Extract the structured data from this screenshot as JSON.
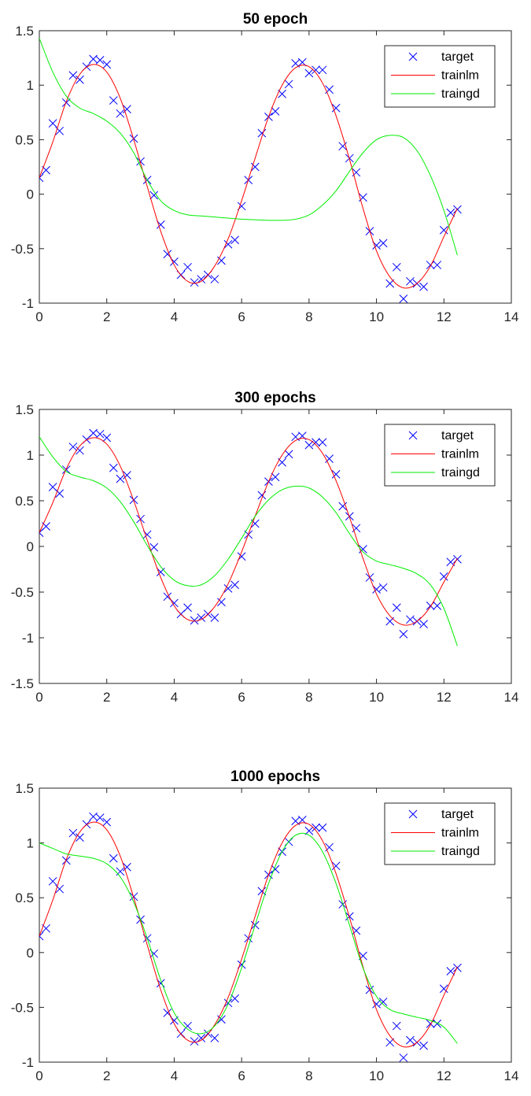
{
  "chart_data": [
    {
      "type": "line",
      "title": "50 epoch",
      "xlabel": "",
      "ylabel": "",
      "xlim": [
        0,
        14
      ],
      "ylim": [
        -1,
        1.5
      ],
      "xticks": [
        0,
        2,
        4,
        6,
        8,
        10,
        12,
        14
      ],
      "xtick_labels": [
        "0",
        "2",
        "4",
        "6",
        "8",
        "10",
        "12",
        "14"
      ],
      "yticks": [
        -1,
        -0.5,
        0,
        0.5,
        1,
        1.5
      ],
      "ytick_labels": [
        "-1",
        "-0.5",
        "0",
        "0.5",
        "1",
        "1.5"
      ],
      "grid": false,
      "legend": {
        "position": "top-right",
        "entries": [
          "target",
          "trainlm",
          "traingd"
        ]
      },
      "series": [
        {
          "name": "target",
          "type": "scatter",
          "marker": "x",
          "color": "#0000ff",
          "x": [
            0,
            0.2,
            0.4,
            0.6,
            0.8,
            1.0,
            1.2,
            1.4,
            1.6,
            1.8,
            2.0,
            2.2,
            2.4,
            2.6,
            2.8,
            3.0,
            3.2,
            3.4,
            3.6,
            3.8,
            4.0,
            4.2,
            4.4,
            4.6,
            4.8,
            5.0,
            5.2,
            5.4,
            5.6,
            5.8,
            6.0,
            6.2,
            6.4,
            6.6,
            6.8,
            7.0,
            7.2,
            7.4,
            7.6,
            7.8,
            8.0,
            8.2,
            8.4,
            8.6,
            8.8,
            9.0,
            9.2,
            9.4,
            9.6,
            9.8,
            10.0,
            10.2,
            10.4,
            10.6,
            10.8,
            11.0,
            11.2,
            11.4,
            11.6,
            11.8,
            12.0,
            12.2,
            12.4
          ],
          "y": [
            0.15,
            0.22,
            0.65,
            0.58,
            0.84,
            1.09,
            1.05,
            1.17,
            1.24,
            1.23,
            1.19,
            0.86,
            0.74,
            0.78,
            0.51,
            0.3,
            0.13,
            -0.01,
            -0.28,
            -0.55,
            -0.62,
            -0.74,
            -0.67,
            -0.81,
            -0.78,
            -0.74,
            -0.78,
            -0.61,
            -0.46,
            -0.42,
            -0.11,
            0.13,
            0.25,
            0.56,
            0.71,
            0.76,
            0.92,
            1.01,
            1.2,
            1.21,
            1.11,
            1.14,
            1.14,
            0.96,
            0.79,
            0.44,
            0.33,
            0.2,
            -0.03,
            -0.34,
            -0.47,
            -0.45,
            -0.82,
            -0.67,
            -0.96,
            -0.8,
            -0.82,
            -0.85,
            -0.65,
            -0.65,
            -0.33,
            -0.17,
            -0.14
          ]
        },
        {
          "name": "trainlm",
          "type": "line",
          "color": "#ff0000",
          "x": [
            0,
            0.4,
            0.8,
            1.2,
            1.6,
            2.0,
            2.4,
            2.8,
            3.2,
            3.6,
            4.0,
            4.4,
            4.8,
            5.2,
            5.6,
            6.0,
            6.4,
            6.8,
            7.2,
            7.6,
            8.0,
            8.4,
            8.8,
            9.2,
            9.6,
            10.0,
            10.4,
            10.8,
            11.2,
            11.6,
            12.0,
            12.4
          ],
          "y": [
            0.15,
            0.48,
            0.85,
            1.1,
            1.19,
            1.12,
            0.88,
            0.5,
            0.07,
            -0.34,
            -0.65,
            -0.8,
            -0.8,
            -0.66,
            -0.41,
            -0.06,
            0.33,
            0.71,
            1.0,
            1.16,
            1.17,
            1.02,
            0.72,
            0.32,
            -0.13,
            -0.52,
            -0.76,
            -0.86,
            -0.82,
            -0.66,
            -0.39,
            -0.13
          ]
        },
        {
          "name": "traingd",
          "type": "line",
          "color": "#00ee00",
          "x": [
            0,
            0.4,
            0.8,
            1.2,
            1.6,
            2.0,
            2.4,
            2.8,
            3.2,
            3.6,
            4.0,
            4.4,
            4.8,
            5.2,
            5.6,
            6.0,
            6.4,
            6.8,
            7.2,
            7.6,
            8.0,
            8.4,
            8.8,
            9.2,
            9.6,
            10.0,
            10.4,
            10.8,
            11.2,
            11.6,
            12.0,
            12.4
          ],
          "y": [
            1.43,
            1.12,
            0.9,
            0.79,
            0.74,
            0.67,
            0.56,
            0.38,
            0.13,
            -0.06,
            -0.15,
            -0.19,
            -0.2,
            -0.21,
            -0.22,
            -0.23,
            -0.235,
            -0.24,
            -0.24,
            -0.23,
            -0.19,
            -0.1,
            0.03,
            0.21,
            0.38,
            0.5,
            0.54,
            0.52,
            0.4,
            0.17,
            -0.15,
            -0.56
          ]
        }
      ]
    },
    {
      "type": "line",
      "title": "300 epochs",
      "xlabel": "",
      "ylabel": "",
      "xlim": [
        0,
        14
      ],
      "ylim": [
        -1.5,
        1.5
      ],
      "xticks": [
        0,
        2,
        4,
        6,
        8,
        10,
        12,
        14
      ],
      "xtick_labels": [
        "0",
        "2",
        "4",
        "6",
        "8",
        "10",
        "12",
        "14"
      ],
      "yticks": [
        -1.5,
        -1,
        -0.5,
        0,
        0.5,
        1,
        1.5
      ],
      "ytick_labels": [
        "-1.5",
        "-1",
        "-0.5",
        "0",
        "0.5",
        "1",
        "1.5"
      ],
      "grid": false,
      "legend": {
        "position": "top-right",
        "entries": [
          "target",
          "trainlm",
          "traingd"
        ]
      },
      "series": [
        {
          "name": "target",
          "type": "scatter",
          "marker": "x",
          "color": "#0000ff",
          "x": [
            0,
            0.2,
            0.4,
            0.6,
            0.8,
            1.0,
            1.2,
            1.4,
            1.6,
            1.8,
            2.0,
            2.2,
            2.4,
            2.6,
            2.8,
            3.0,
            3.2,
            3.4,
            3.6,
            3.8,
            4.0,
            4.2,
            4.4,
            4.6,
            4.8,
            5.0,
            5.2,
            5.4,
            5.6,
            5.8,
            6.0,
            6.2,
            6.4,
            6.6,
            6.8,
            7.0,
            7.2,
            7.4,
            7.6,
            7.8,
            8.0,
            8.2,
            8.4,
            8.6,
            8.8,
            9.0,
            9.2,
            9.4,
            9.6,
            9.8,
            10.0,
            10.2,
            10.4,
            10.6,
            10.8,
            11.0,
            11.2,
            11.4,
            11.6,
            11.8,
            12.0,
            12.2,
            12.4
          ],
          "y": [
            0.15,
            0.22,
            0.65,
            0.58,
            0.84,
            1.09,
            1.05,
            1.17,
            1.24,
            1.23,
            1.19,
            0.86,
            0.74,
            0.78,
            0.51,
            0.3,
            0.13,
            -0.01,
            -0.28,
            -0.55,
            -0.62,
            -0.74,
            -0.67,
            -0.81,
            -0.78,
            -0.74,
            -0.78,
            -0.61,
            -0.46,
            -0.42,
            -0.11,
            0.13,
            0.25,
            0.56,
            0.71,
            0.76,
            0.92,
            1.01,
            1.2,
            1.21,
            1.11,
            1.14,
            1.14,
            0.96,
            0.79,
            0.44,
            0.33,
            0.2,
            -0.03,
            -0.34,
            -0.47,
            -0.45,
            -0.82,
            -0.67,
            -0.96,
            -0.8,
            -0.82,
            -0.85,
            -0.65,
            -0.65,
            -0.33,
            -0.17,
            -0.14
          ]
        },
        {
          "name": "trainlm",
          "type": "line",
          "color": "#ff0000",
          "x": [
            0,
            0.4,
            0.8,
            1.2,
            1.6,
            2.0,
            2.4,
            2.8,
            3.2,
            3.6,
            4.0,
            4.4,
            4.8,
            5.2,
            5.6,
            6.0,
            6.4,
            6.8,
            7.2,
            7.6,
            8.0,
            8.4,
            8.8,
            9.2,
            9.6,
            10.0,
            10.4,
            10.8,
            11.2,
            11.6,
            12.0,
            12.4
          ],
          "y": [
            0.15,
            0.48,
            0.85,
            1.1,
            1.19,
            1.12,
            0.88,
            0.5,
            0.07,
            -0.34,
            -0.65,
            -0.8,
            -0.8,
            -0.66,
            -0.41,
            -0.06,
            0.33,
            0.71,
            1.0,
            1.16,
            1.17,
            1.02,
            0.72,
            0.32,
            -0.13,
            -0.52,
            -0.76,
            -0.86,
            -0.82,
            -0.66,
            -0.39,
            -0.13
          ]
        },
        {
          "name": "traingd",
          "type": "line",
          "color": "#00ee00",
          "x": [
            0,
            0.4,
            0.8,
            1.2,
            1.6,
            2.0,
            2.4,
            2.8,
            3.2,
            3.6,
            4.0,
            4.4,
            4.8,
            5.2,
            5.6,
            6.0,
            6.4,
            6.8,
            7.2,
            7.6,
            8.0,
            8.4,
            8.8,
            9.2,
            9.6,
            10.0,
            10.4,
            10.8,
            11.2,
            11.6,
            12.0,
            12.4
          ],
          "y": [
            1.2,
            0.98,
            0.82,
            0.76,
            0.72,
            0.64,
            0.49,
            0.27,
            0.01,
            -0.22,
            -0.37,
            -0.43,
            -0.42,
            -0.32,
            -0.14,
            0.09,
            0.33,
            0.51,
            0.62,
            0.66,
            0.64,
            0.54,
            0.37,
            0.14,
            -0.06,
            -0.16,
            -0.2,
            -0.24,
            -0.3,
            -0.42,
            -0.68,
            -1.09
          ]
        }
      ]
    },
    {
      "type": "line",
      "title": "1000 epochs",
      "xlabel": "",
      "ylabel": "",
      "xlim": [
        0,
        14
      ],
      "ylim": [
        -1,
        1.5
      ],
      "xticks": [
        0,
        2,
        4,
        6,
        8,
        10,
        12,
        14
      ],
      "xtick_labels": [
        "0",
        "2",
        "4",
        "6",
        "8",
        "10",
        "12",
        "14"
      ],
      "yticks": [
        -1,
        -0.5,
        0,
        0.5,
        1,
        1.5
      ],
      "ytick_labels": [
        "-1",
        "-0.5",
        "0",
        "0.5",
        "1",
        "1.5"
      ],
      "grid": false,
      "legend": {
        "position": "top-right",
        "entries": [
          "target",
          "trainlm",
          "traingd"
        ]
      },
      "series": [
        {
          "name": "target",
          "type": "scatter",
          "marker": "x",
          "color": "#0000ff",
          "x": [
            0,
            0.2,
            0.4,
            0.6,
            0.8,
            1.0,
            1.2,
            1.4,
            1.6,
            1.8,
            2.0,
            2.2,
            2.4,
            2.6,
            2.8,
            3.0,
            3.2,
            3.4,
            3.6,
            3.8,
            4.0,
            4.2,
            4.4,
            4.6,
            4.8,
            5.0,
            5.2,
            5.4,
            5.6,
            5.8,
            6.0,
            6.2,
            6.4,
            6.6,
            6.8,
            7.0,
            7.2,
            7.4,
            7.6,
            7.8,
            8.0,
            8.2,
            8.4,
            8.6,
            8.8,
            9.0,
            9.2,
            9.4,
            9.6,
            9.8,
            10.0,
            10.2,
            10.4,
            10.6,
            10.8,
            11.0,
            11.2,
            11.4,
            11.6,
            11.8,
            12.0,
            12.2,
            12.4
          ],
          "y": [
            0.15,
            0.22,
            0.65,
            0.58,
            0.84,
            1.09,
            1.05,
            1.17,
            1.24,
            1.23,
            1.19,
            0.86,
            0.74,
            0.78,
            0.51,
            0.3,
            0.13,
            -0.01,
            -0.28,
            -0.55,
            -0.62,
            -0.74,
            -0.67,
            -0.81,
            -0.78,
            -0.74,
            -0.78,
            -0.61,
            -0.46,
            -0.42,
            -0.11,
            0.13,
            0.25,
            0.56,
            0.71,
            0.76,
            0.92,
            1.01,
            1.2,
            1.21,
            1.11,
            1.14,
            1.14,
            0.96,
            0.79,
            0.44,
            0.33,
            0.2,
            -0.03,
            -0.34,
            -0.47,
            -0.45,
            -0.82,
            -0.67,
            -0.96,
            -0.8,
            -0.82,
            -0.85,
            -0.65,
            -0.65,
            -0.33,
            -0.17,
            -0.14
          ]
        },
        {
          "name": "trainlm",
          "type": "line",
          "color": "#ff0000",
          "x": [
            0,
            0.4,
            0.8,
            1.2,
            1.6,
            2.0,
            2.4,
            2.8,
            3.2,
            3.6,
            4.0,
            4.4,
            4.8,
            5.2,
            5.6,
            6.0,
            6.4,
            6.8,
            7.2,
            7.6,
            8.0,
            8.4,
            8.8,
            9.2,
            9.6,
            10.0,
            10.4,
            10.8,
            11.2,
            11.6,
            12.0,
            12.4
          ],
          "y": [
            0.15,
            0.48,
            0.85,
            1.1,
            1.19,
            1.12,
            0.88,
            0.5,
            0.07,
            -0.34,
            -0.65,
            -0.8,
            -0.8,
            -0.66,
            -0.41,
            -0.06,
            0.33,
            0.71,
            1.0,
            1.16,
            1.17,
            1.02,
            0.72,
            0.32,
            -0.13,
            -0.52,
            -0.76,
            -0.86,
            -0.82,
            -0.66,
            -0.39,
            -0.13
          ]
        },
        {
          "name": "traingd",
          "type": "line",
          "color": "#00ee00",
          "x": [
            0,
            0.4,
            0.8,
            1.2,
            1.6,
            2.0,
            2.4,
            2.8,
            3.2,
            3.6,
            4.0,
            4.4,
            4.8,
            5.2,
            5.6,
            6.0,
            6.4,
            6.8,
            7.2,
            7.6,
            8.0,
            8.4,
            8.8,
            9.2,
            9.6,
            10.0,
            10.4,
            10.8,
            11.2,
            11.6,
            12.0,
            12.4
          ],
          "y": [
            1.0,
            0.95,
            0.9,
            0.88,
            0.86,
            0.81,
            0.69,
            0.46,
            0.13,
            -0.25,
            -0.55,
            -0.7,
            -0.74,
            -0.67,
            -0.47,
            -0.14,
            0.25,
            0.63,
            0.92,
            1.07,
            1.07,
            0.92,
            0.63,
            0.25,
            -0.14,
            -0.4,
            -0.52,
            -0.56,
            -0.59,
            -0.62,
            -0.68,
            -0.83
          ]
        }
      ]
    }
  ]
}
